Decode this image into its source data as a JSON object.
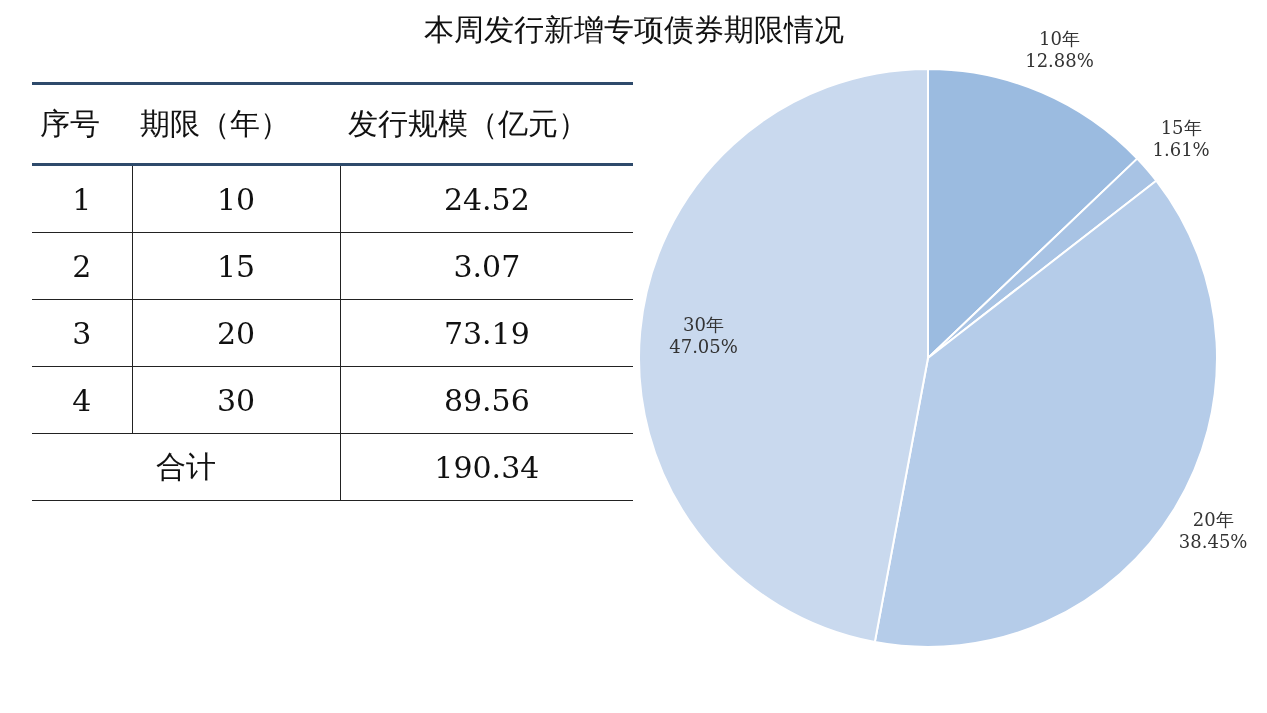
{
  "chart_data": {
    "type": "pie",
    "title": "本周发行新增专项债券期限情况",
    "categories": [
      "10年",
      "15年",
      "20年",
      "30年"
    ],
    "values": [
      12.88,
      1.61,
      38.45,
      47.05
    ],
    "colors": [
      "#9bbbe0",
      "#a8c3e4",
      "#b5cce9",
      "#c9d9ee"
    ],
    "value_labels": [
      "12.88%",
      "1.61%",
      "38.45%",
      "47.05%"
    ],
    "annotations": [
      "序号",
      "期限（年）",
      "发行规模（亿元）",
      "1",
      "10",
      "24.52",
      "2",
      "15",
      "3.07",
      "3",
      "20",
      "73.19",
      "4",
      "30",
      "89.56",
      "合计",
      "190.34"
    ]
  }
}
